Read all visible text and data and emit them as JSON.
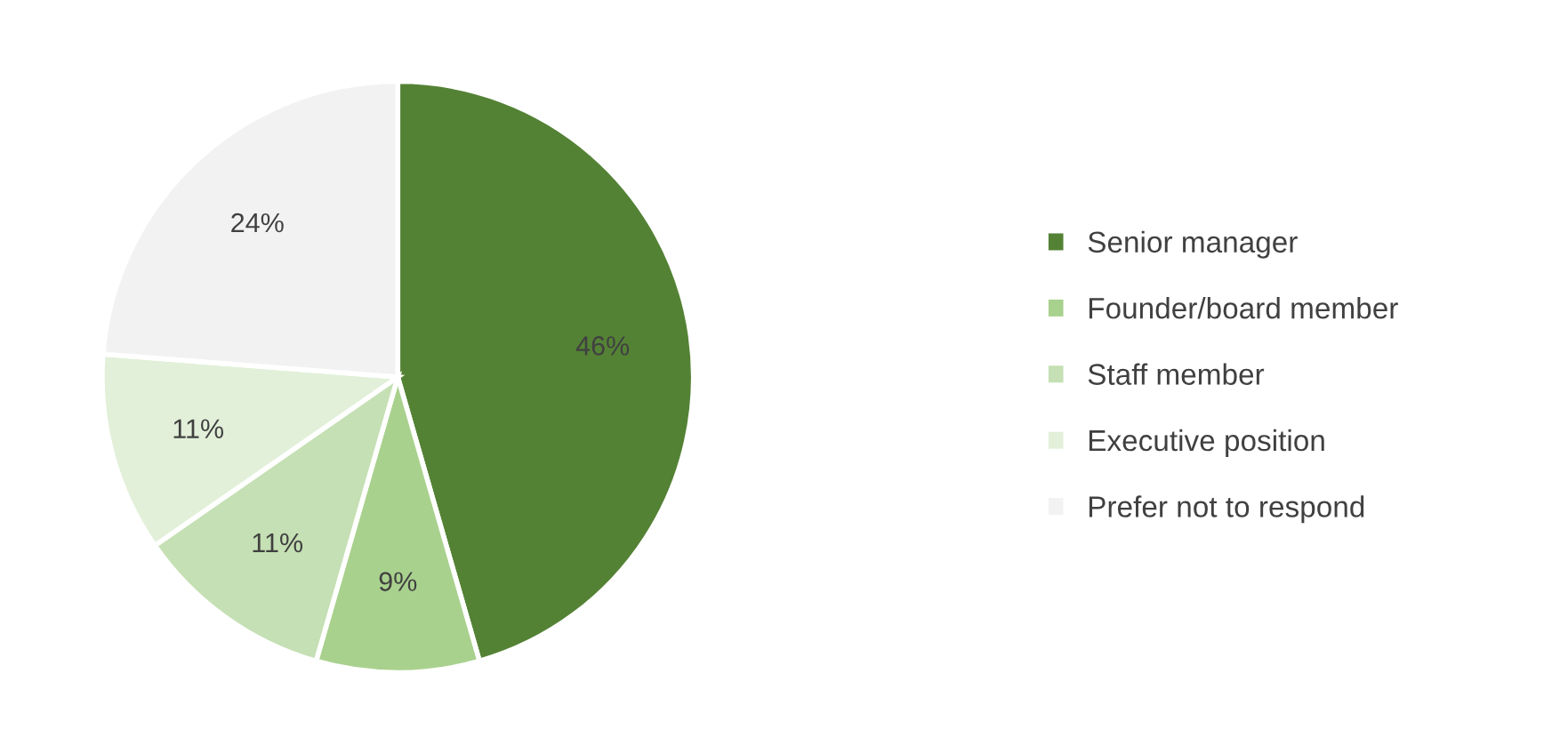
{
  "chart_data": {
    "type": "pie",
    "categories": [
      "Senior manager",
      "Founder/board member",
      "Staff member",
      "Executive position",
      "Prefer not to respond"
    ],
    "values": [
      46,
      9,
      11,
      11,
      24
    ],
    "value_labels": [
      "46%",
      "9%",
      "11%",
      "11%",
      "24%"
    ],
    "colors": [
      "#548235",
      "#a9d18e",
      "#c5e0b4",
      "#e2f0d9",
      "#f2f2f2"
    ],
    "legend": "right"
  }
}
